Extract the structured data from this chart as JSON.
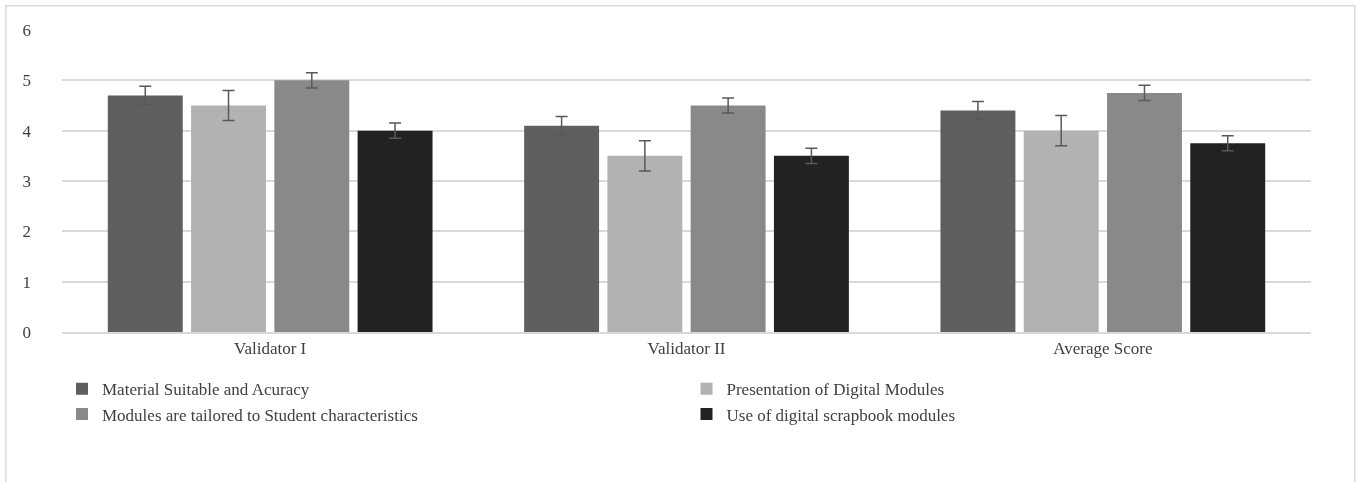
{
  "chart_data": {
    "type": "bar",
    "categories": [
      "Validator I",
      "Validator II",
      "Average Score"
    ],
    "series": [
      {
        "name": "Material Suitable and Acuracy",
        "color": "#5f5f5f",
        "values": [
          4.7,
          4.1,
          4.4
        ],
        "errors": [
          0.18,
          0.18,
          0.18
        ]
      },
      {
        "name": "Presentation of Digital Modules",
        "color": "#b2b2b2",
        "values": [
          4.5,
          3.5,
          4.0
        ],
        "errors": [
          0.3,
          0.3,
          0.3
        ]
      },
      {
        "name": "Modules are tailored to Student characteristics",
        "color": "#898989",
        "values": [
          5.0,
          4.5,
          4.75
        ],
        "errors": [
          0.15,
          0.15,
          0.15
        ]
      },
      {
        "name": "Use of digital scrapbook modules",
        "color": "#222222",
        "values": [
          4.0,
          3.5,
          3.75
        ],
        "errors": [
          0.15,
          0.15,
          0.15
        ]
      }
    ],
    "ylim": [
      0,
      6
    ],
    "yticks": [
      0,
      1,
      2,
      3,
      4,
      5,
      6
    ],
    "grid": "y",
    "legend": "bottom"
  }
}
